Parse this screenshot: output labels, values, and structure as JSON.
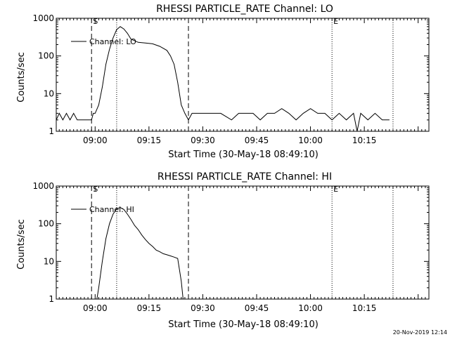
{
  "footer_timestamp": "20-Nov-2019 12:14",
  "chart_data": [
    {
      "type": "line",
      "title": "RHESSI PARTICLE_RATE Channel: LO",
      "xlabel": "Start Time (30-May-18 08:49:10)",
      "ylabel": "Counts/sec",
      "y_scale": "log",
      "ylim": [
        1,
        1000
      ],
      "y_ticks": [
        1,
        10,
        100,
        1000
      ],
      "x_ticks": [
        "09:00",
        "09:15",
        "09:30",
        "09:45",
        "10:00",
        "10:15"
      ],
      "legend": [
        "Channel: LO"
      ],
      "legend_placement": "top-left",
      "markers": [
        {
          "label": "S",
          "time": "08:59",
          "style": "dashed"
        },
        {
          "label": "",
          "time": "09:06",
          "style": "dotted"
        },
        {
          "label": "",
          "time": "09:26",
          "style": "dashed"
        },
        {
          "label": "E",
          "time": "10:06",
          "style": "dotted"
        },
        {
          "label": "",
          "time": "10:23",
          "style": "dotted"
        }
      ],
      "series": [
        {
          "name": "Channel: LO",
          "points": [
            [
              "08:49:10",
              2
            ],
            [
              "08:50",
              3
            ],
            [
              "08:51",
              2
            ],
            [
              "08:52",
              3
            ],
            [
              "08:53",
              2
            ],
            [
              "08:54",
              3
            ],
            [
              "08:55",
              2
            ],
            [
              "08:57",
              2
            ],
            [
              "08:59",
              2
            ],
            [
              "08:59:30",
              3
            ],
            [
              "09:00",
              3
            ],
            [
              "09:01",
              5
            ],
            [
              "09:02",
              15
            ],
            [
              "09:03",
              60
            ],
            [
              "09:04",
              150
            ],
            [
              "09:05",
              300
            ],
            [
              "09:06",
              500
            ],
            [
              "09:07",
              600
            ],
            [
              "09:08",
              520
            ],
            [
              "09:09",
              400
            ],
            [
              "09:10",
              280
            ],
            [
              "09:12",
              230
            ],
            [
              "09:14",
              220
            ],
            [
              "09:16",
              210
            ],
            [
              "09:18",
              180
            ],
            [
              "09:20",
              140
            ],
            [
              "09:21",
              100
            ],
            [
              "09:22",
              60
            ],
            [
              "09:23",
              20
            ],
            [
              "09:24",
              5
            ],
            [
              "09:25",
              3
            ],
            [
              "09:26",
              2
            ],
            [
              "09:27",
              3
            ],
            [
              "09:28",
              3
            ],
            [
              "09:30",
              3
            ],
            [
              "09:35",
              3
            ],
            [
              "09:38",
              2
            ],
            [
              "09:40",
              3
            ],
            [
              "09:44",
              3
            ],
            [
              "09:46",
              2
            ],
            [
              "09:48",
              3
            ],
            [
              "09:50",
              3
            ],
            [
              "09:52",
              4
            ],
            [
              "09:54",
              3
            ],
            [
              "09:56",
              2
            ],
            [
              "09:58",
              3
            ],
            [
              "10:00",
              4
            ],
            [
              "10:02",
              3
            ],
            [
              "10:04",
              3
            ],
            [
              "10:06",
              2
            ],
            [
              "10:08",
              3
            ],
            [
              "10:10",
              2
            ],
            [
              "10:12",
              3
            ],
            [
              "10:13",
              1
            ],
            [
              "10:14",
              3
            ],
            [
              "10:16",
              2
            ],
            [
              "10:18",
              3
            ],
            [
              "10:20",
              2
            ],
            [
              "10:22",
              2
            ]
          ]
        }
      ]
    },
    {
      "type": "line",
      "title": "RHESSI PARTICLE_RATE Channel: HI",
      "xlabel": "Start Time (30-May-18 08:49:10)",
      "ylabel": "Counts/sec",
      "y_scale": "log",
      "ylim": [
        1,
        1000
      ],
      "y_ticks": [
        1,
        10,
        100,
        1000
      ],
      "x_ticks": [
        "09:00",
        "09:15",
        "09:30",
        "09:45",
        "10:00",
        "10:15"
      ],
      "legend": [
        "Channel: HI"
      ],
      "legend_placement": "top-left",
      "markers": [
        {
          "label": "S",
          "time": "08:59",
          "style": "dashed"
        },
        {
          "label": "",
          "time": "09:06",
          "style": "dotted"
        },
        {
          "label": "",
          "time": "09:26",
          "style": "dashed"
        },
        {
          "label": "E",
          "time": "10:06",
          "style": "dotted"
        },
        {
          "label": "",
          "time": "10:23",
          "style": "dotted"
        }
      ],
      "series": [
        {
          "name": "Channel: HI",
          "points": [
            [
              "09:00:30",
              1
            ],
            [
              "09:01",
              2
            ],
            [
              "09:02",
              10
            ],
            [
              "09:03",
              40
            ],
            [
              "09:04",
              100
            ],
            [
              "09:05",
              180
            ],
            [
              "09:06",
              250
            ],
            [
              "09:07",
              270
            ],
            [
              "09:08",
              240
            ],
            [
              "09:09",
              180
            ],
            [
              "09:10",
              130
            ],
            [
              "09:11",
              90
            ],
            [
              "09:12",
              70
            ],
            [
              "09:13",
              50
            ],
            [
              "09:14",
              38
            ],
            [
              "09:15",
              30
            ],
            [
              "09:16",
              25
            ],
            [
              "09:17",
              20
            ],
            [
              "09:18",
              18
            ],
            [
              "09:19",
              16
            ],
            [
              "09:20",
              15
            ],
            [
              "09:21",
              14
            ],
            [
              "09:22",
              13
            ],
            [
              "09:23",
              12
            ],
            [
              "09:24",
              3
            ],
            [
              "09:24:30",
              1
            ]
          ]
        }
      ]
    }
  ]
}
